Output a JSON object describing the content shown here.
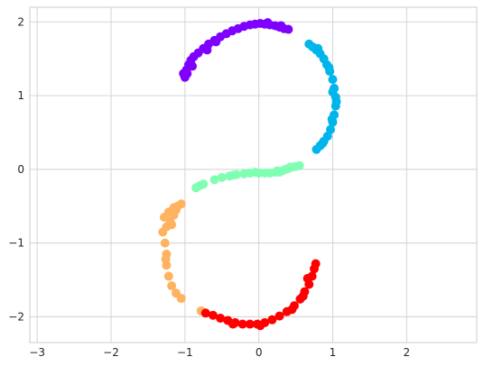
{
  "chart_data": {
    "type": "scatter",
    "title": "",
    "xlabel": "",
    "ylabel": "",
    "xlim": [
      -3.1,
      2.95
    ],
    "ylim": [
      -2.35,
      2.2
    ],
    "xticks": [
      -3,
      -2,
      -1,
      0,
      1,
      2
    ],
    "yticks": [
      -2,
      -1,
      0,
      1,
      2
    ],
    "xtick_labels": [
      "−3",
      "−2",
      "−1",
      "0",
      "1",
      "2"
    ],
    "ytick_labels": [
      "−2",
      "−1",
      "0",
      "1",
      "2"
    ],
    "grid": true,
    "legend": "none",
    "series": [
      {
        "color": "#7f00ff",
        "points": [
          [
            -1.0,
            1.25
          ],
          [
            -1.02,
            1.3
          ],
          [
            -0.98,
            1.35
          ],
          [
            -0.95,
            1.42
          ],
          [
            -0.92,
            1.48
          ],
          [
            -0.88,
            1.53
          ],
          [
            -0.82,
            1.58
          ],
          [
            -0.75,
            1.64
          ],
          [
            -0.68,
            1.7
          ],
          [
            -0.6,
            1.75
          ],
          [
            -0.52,
            1.8
          ],
          [
            -0.44,
            1.84
          ],
          [
            -0.36,
            1.88
          ],
          [
            -0.28,
            1.91
          ],
          [
            -0.2,
            1.94
          ],
          [
            -0.12,
            1.96
          ],
          [
            -0.05,
            1.97
          ],
          [
            0.02,
            1.98
          ],
          [
            0.08,
            1.97
          ],
          [
            0.15,
            1.96
          ],
          [
            0.22,
            1.95
          ],
          [
            0.28,
            1.93
          ],
          [
            0.34,
            1.91
          ],
          [
            0.4,
            1.9
          ],
          [
            -0.97,
            1.3
          ],
          [
            -0.9,
            1.4
          ],
          [
            -0.7,
            1.62
          ],
          [
            -0.58,
            1.73
          ],
          [
            0.12,
            1.99
          ],
          [
            0.3,
            1.95
          ]
        ]
      },
      {
        "color": "#00b4ec",
        "points": [
          [
            0.68,
            1.7
          ],
          [
            0.73,
            1.66
          ],
          [
            0.78,
            1.62
          ],
          [
            0.83,
            1.57
          ],
          [
            0.88,
            1.5
          ],
          [
            0.92,
            1.42
          ],
          [
            0.96,
            1.33
          ],
          [
            1.0,
            1.22
          ],
          [
            1.02,
            1.1
          ],
          [
            1.04,
            0.98
          ],
          [
            1.04,
            0.86
          ],
          [
            1.02,
            0.74
          ],
          [
            1.0,
            0.64
          ],
          [
            0.97,
            0.54
          ],
          [
            0.93,
            0.45
          ],
          [
            0.88,
            0.38
          ],
          [
            0.83,
            0.32
          ],
          [
            0.78,
            0.27
          ],
          [
            0.95,
            1.38
          ],
          [
            1.05,
            0.92
          ],
          [
            0.99,
            0.68
          ],
          [
            0.86,
            0.35
          ],
          [
            1.0,
            1.05
          ],
          [
            0.8,
            1.64
          ]
        ]
      },
      {
        "color": "#80ffb4",
        "points": [
          [
            -0.85,
            -0.25
          ],
          [
            -0.8,
            -0.22
          ],
          [
            -0.75,
            -0.2
          ],
          [
            -0.6,
            -0.14
          ],
          [
            -0.5,
            -0.11
          ],
          [
            -0.4,
            -0.09
          ],
          [
            -0.3,
            -0.07
          ],
          [
            -0.2,
            -0.06
          ],
          [
            -0.12,
            -0.05
          ],
          [
            0.0,
            -0.05
          ],
          [
            0.08,
            -0.05
          ],
          [
            0.15,
            -0.05
          ],
          [
            0.22,
            -0.04
          ],
          [
            0.28,
            -0.04
          ],
          [
            0.32,
            -0.02
          ],
          [
            0.36,
            0.0
          ],
          [
            0.4,
            0.01
          ],
          [
            0.45,
            0.03
          ],
          [
            0.5,
            0.04
          ],
          [
            0.55,
            0.05
          ],
          [
            0.25,
            -0.02
          ],
          [
            0.42,
            0.03
          ],
          [
            -0.35,
            -0.08
          ],
          [
            -0.05,
            -0.04
          ]
        ]
      },
      {
        "color": "#ffb360",
        "points": [
          [
            -1.05,
            -0.47
          ],
          [
            -1.1,
            -0.5
          ],
          [
            -1.12,
            -0.55
          ],
          [
            -1.15,
            -0.62
          ],
          [
            -1.2,
            -0.7
          ],
          [
            -1.25,
            -0.78
          ],
          [
            -1.3,
            -0.85
          ],
          [
            -1.28,
            -0.65
          ],
          [
            -1.22,
            -0.58
          ],
          [
            -1.27,
            -1.0
          ],
          [
            -1.25,
            -1.15
          ],
          [
            -1.25,
            -1.3
          ],
          [
            -1.22,
            -1.45
          ],
          [
            -1.18,
            -1.58
          ],
          [
            -1.12,
            -1.68
          ],
          [
            -1.05,
            -1.75
          ],
          [
            -0.78,
            -1.92
          ],
          [
            -1.18,
            -0.75
          ],
          [
            -1.26,
            -1.22
          ],
          [
            -1.15,
            -0.52
          ]
        ]
      },
      {
        "color": "#ff0000",
        "points": [
          [
            -0.72,
            -1.95
          ],
          [
            -0.62,
            -1.98
          ],
          [
            -0.52,
            -2.02
          ],
          [
            -0.42,
            -2.05
          ],
          [
            -0.32,
            -2.08
          ],
          [
            -0.22,
            -2.1
          ],
          [
            -0.12,
            -2.1
          ],
          [
            -0.02,
            -2.1
          ],
          [
            0.08,
            -2.08
          ],
          [
            0.18,
            -2.04
          ],
          [
            0.28,
            -1.99
          ],
          [
            0.38,
            -1.93
          ],
          [
            0.48,
            -1.85
          ],
          [
            0.56,
            -1.76
          ],
          [
            0.62,
            -1.66
          ],
          [
            0.68,
            -1.56
          ],
          [
            0.72,
            -1.45
          ],
          [
            0.75,
            -1.35
          ],
          [
            0.77,
            -1.28
          ],
          [
            0.6,
            -1.72
          ],
          [
            0.45,
            -1.9
          ],
          [
            0.02,
            -2.12
          ],
          [
            -0.35,
            -2.1
          ],
          [
            0.66,
            -1.48
          ]
        ]
      }
    ]
  }
}
